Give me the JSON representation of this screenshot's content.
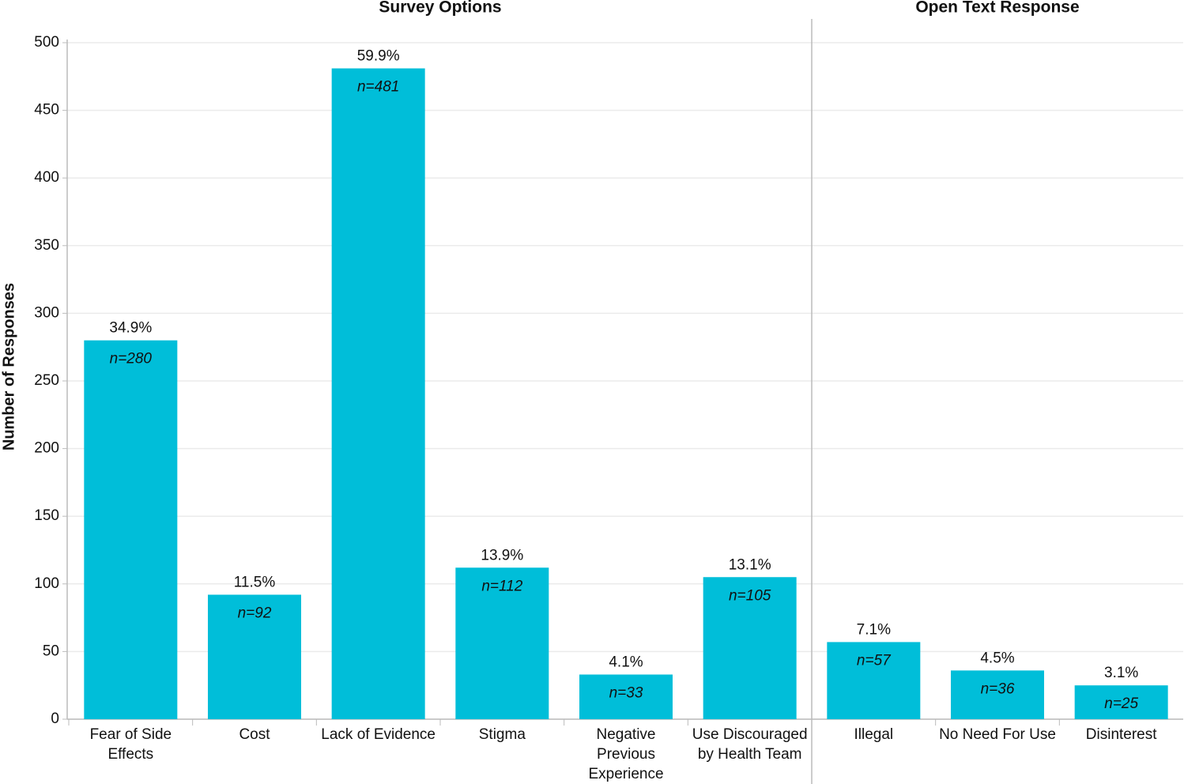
{
  "chart_data": {
    "type": "bar",
    "y_label": "Number of Responses",
    "color": "#00bed9",
    "ylim": [
      0,
      500
    ],
    "yticks": [
      0,
      50,
      100,
      150,
      200,
      250,
      300,
      350,
      400,
      450,
      500
    ],
    "grid": true,
    "groups": [
      {
        "name": "Survey Options",
        "categories": [
          "Fear of Side Effects",
          "Cost",
          "Lack of Evidence",
          "Stigma",
          "Negative Previous Experience",
          "Use Discouraged by Health Team"
        ],
        "values": [
          280,
          92,
          481,
          112,
          33,
          105
        ],
        "value_labels": [
          "n=280",
          "n=92",
          "n=481",
          "n=112",
          "n=33",
          "n=105"
        ],
        "percents": [
          34.9,
          11.5,
          59.9,
          13.9,
          4.1,
          13.1
        ],
        "percent_labels": [
          "34.9%",
          "11.5%",
          "59.9%",
          "13.9%",
          "4.1%",
          "13.1%"
        ]
      },
      {
        "name": "Open Text Response",
        "categories": [
          "Illegal",
          "No Need For Use",
          "Disinterest"
        ],
        "values": [
          57,
          36,
          25
        ],
        "value_labels": [
          "n=57",
          "n=36",
          "n=25"
        ],
        "percents": [
          7.1,
          4.5,
          3.1
        ],
        "percent_labels": [
          "7.1%",
          "4.5%",
          "3.1%"
        ]
      }
    ]
  }
}
